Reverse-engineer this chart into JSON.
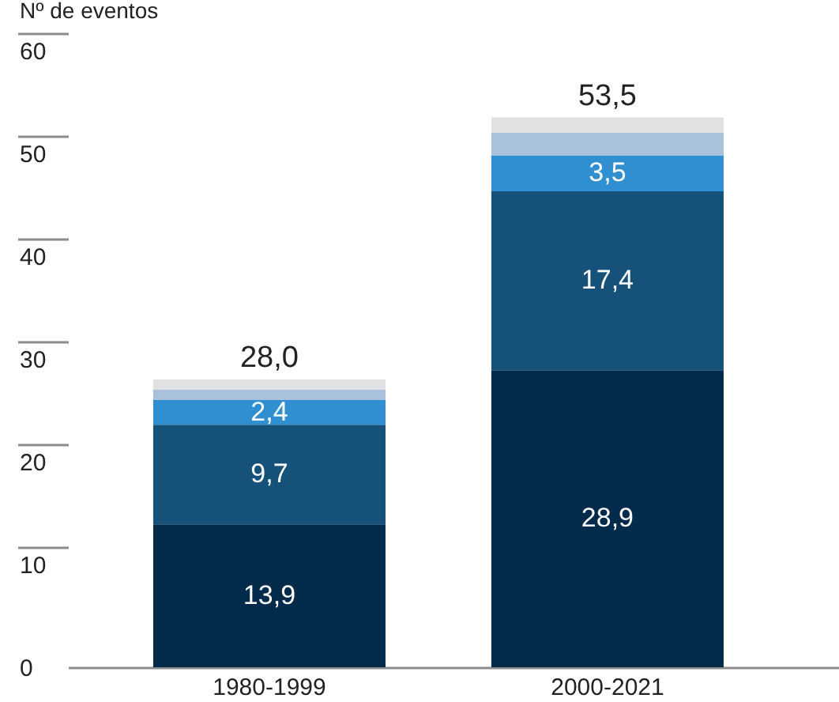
{
  "chart_data": {
    "type": "bar",
    "ylabel": "Nº de eventos",
    "categories": [
      "1980-1999",
      "2000-2021"
    ],
    "stacked": true,
    "series": [
      {
        "color": "#022b4b",
        "values": [
          13.9,
          28.9
        ],
        "value_labels": [
          "13,9",
          "28,9"
        ]
      },
      {
        "color": "#155179",
        "values": [
          9.7,
          17.4
        ],
        "value_labels": [
          "9,7",
          "17,4"
        ]
      },
      {
        "color": "#2f8fd1",
        "values": [
          2.4,
          3.5
        ],
        "value_labels": [
          "2,4",
          "3,5"
        ]
      },
      {
        "color": "#a9c1dd",
        "values": [
          1.0,
          2.2
        ]
      },
      {
        "color": "#e0e1e3",
        "values": [
          1.0,
          1.5
        ]
      }
    ],
    "totals": [
      "28,0",
      "53,5"
    ],
    "ylim": [
      0,
      60
    ],
    "yticks": [
      0,
      10,
      20,
      30,
      40,
      50,
      60
    ]
  }
}
